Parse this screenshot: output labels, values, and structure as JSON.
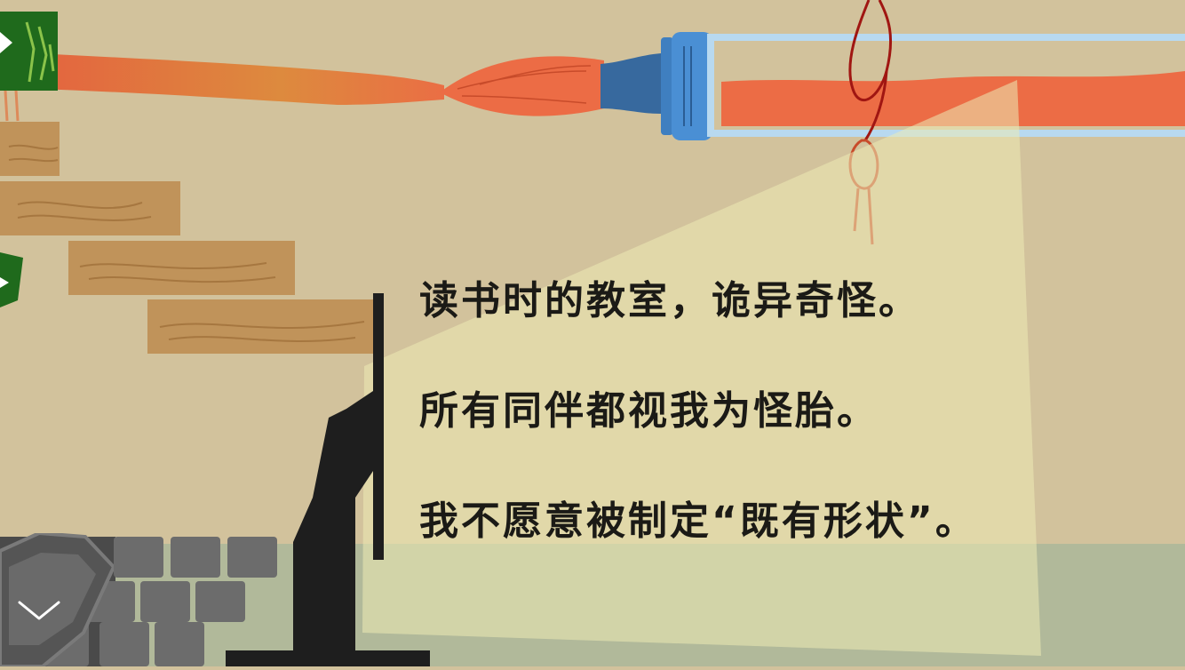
{
  "scene": {
    "narration": [
      "读书时的教室，诡异奇怪。",
      "所有同伴都视我为怪胎。",
      "我不愿意被制定“既有形状”。"
    ]
  },
  "controls": {
    "collapse_icon": "chevron-down-icon"
  },
  "colors": {
    "background": "#d2c29c",
    "brush_paint": "#ec6c45",
    "brush_ferrule": "#3f7fc0",
    "wood": "#c0935a",
    "monitor": "#1e1e1e",
    "keyboard_key": "#6c6c6c",
    "string": "#a01612",
    "light_beam": "#ecebb4"
  }
}
